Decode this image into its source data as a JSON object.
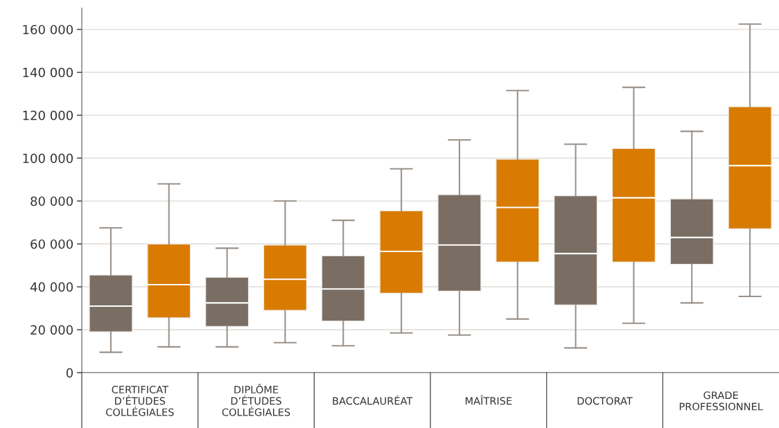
{
  "chart_data": {
    "type": "box",
    "categories": [
      "CERTIFICAT\nD’ÉTUDES\nCOLLÉGIALES",
      "DIPLÔME\nD’ÉTUDES\nCOLLÉGIALES",
      "BACCALAURÉAT",
      "MAÎTRISE",
      "DOCTORAT",
      "GRADE\nPROFESSIONNEL"
    ],
    "series": [
      {
        "color": "#7a6e64",
        "boxes": [
          {
            "low": 9500,
            "q1": 19000,
            "median": 31000,
            "q3": 45500,
            "high": 67500
          },
          {
            "low": 12000,
            "q1": 21500,
            "median": 32500,
            "q3": 44500,
            "high": 58000
          },
          {
            "low": 12500,
            "q1": 24000,
            "median": 39000,
            "q3": 54500,
            "high": 71000
          },
          {
            "low": 17500,
            "q1": 38000,
            "median": 59500,
            "q3": 83000,
            "high": 108500
          },
          {
            "low": 11500,
            "q1": 31500,
            "median": 55500,
            "q3": 82500,
            "high": 106500
          },
          {
            "low": 32500,
            "q1": 50500,
            "median": 63000,
            "q3": 81000,
            "high": 112500
          }
        ]
      },
      {
        "color": "#d97b00",
        "boxes": [
          {
            "low": 12000,
            "q1": 25500,
            "median": 41000,
            "q3": 60000,
            "high": 88000
          },
          {
            "low": 14000,
            "q1": 29000,
            "median": 43500,
            "q3": 59500,
            "high": 80000
          },
          {
            "low": 18500,
            "q1": 37000,
            "median": 56500,
            "q3": 75500,
            "high": 95000
          },
          {
            "low": 25000,
            "q1": 51500,
            "median": 77000,
            "q3": 99500,
            "high": 131500
          },
          {
            "low": 23000,
            "q1": 51500,
            "median": 81500,
            "q3": 104500,
            "high": 133000
          },
          {
            "low": 35500,
            "q1": 67000,
            "median": 96500,
            "q3": 124000,
            "high": 162500
          }
        ]
      }
    ],
    "ylim": [
      0,
      170000
    ],
    "yticks": [
      0,
      {
        "value": 20000,
        "label": "20 000"
      },
      {
        "value": 40000,
        "label": "40 000"
      },
      {
        "value": 60000,
        "label": "60 000"
      },
      {
        "value": 80000,
        "label": "80 000"
      },
      {
        "value": 100000,
        "label": "100 000"
      },
      {
        "value": 120000,
        "label": "120 000"
      },
      {
        "value": 140000,
        "label": "140 000"
      },
      {
        "value": 160000,
        "label": "160 000"
      }
    ],
    "grid": "y"
  }
}
